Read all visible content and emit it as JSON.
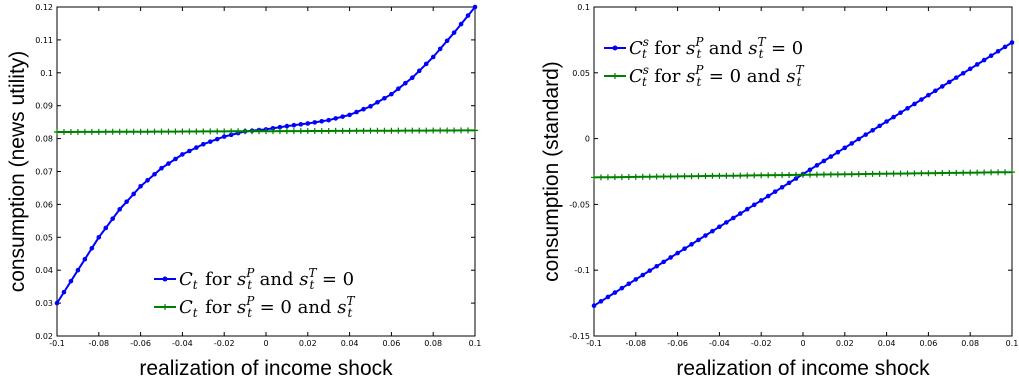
{
  "chart_data": [
    {
      "type": "line",
      "xlabel": "realization of income shock",
      "ylabel": "consumption (news utility)",
      "xlim": [
        -0.1,
        0.1
      ],
      "ylim": [
        0.02,
        0.12
      ],
      "xticks": [
        "-0.1",
        "-0.08",
        "-0.06",
        "-0.04",
        "-0.02",
        "0",
        "0.02",
        "0.04",
        "0.06",
        "0.08",
        "0.1"
      ],
      "yticks": [
        "0.02",
        "0.03",
        "0.04",
        "0.05",
        "0.06",
        "0.07",
        "0.08",
        "0.09",
        "0.1",
        "0.11",
        "0.12"
      ],
      "grid": false,
      "legend_position": "bottom-right",
      "series": [
        {
          "name": "C_t for s_t^P and s_t^T = 0",
          "color": "#0000ff",
          "marker": "dot",
          "x": [
            -0.1,
            -0.09,
            -0.08,
            -0.07,
            -0.06,
            -0.05,
            -0.04,
            -0.03,
            -0.02,
            -0.01,
            0,
            0.01,
            0.02,
            0.03,
            0.04,
            0.05,
            0.06,
            0.07,
            0.08,
            0.09,
            0.1
          ],
          "y": [
            0.03,
            0.04,
            0.05,
            0.0585,
            0.0655,
            0.071,
            0.0752,
            0.0783,
            0.0806,
            0.0822,
            0.0828,
            0.0838,
            0.0846,
            0.0856,
            0.0872,
            0.0898,
            0.0935,
            0.0985,
            0.1048,
            0.1122,
            0.12
          ]
        },
        {
          "name": "C_t for s_t^P = 0 and s_t^T",
          "color": "#008000",
          "marker": "plus",
          "x": [
            -0.1,
            0.1
          ],
          "y": [
            0.082,
            0.0825
          ]
        }
      ],
      "legend_entries": [
        {
          "prefix": "C",
          "sub": "t",
          "sup": "",
          "text": " for ",
          "var1": "s",
          "var1_sub": "t",
          "var1_sup": "P",
          "mid": " and ",
          "var2": "s",
          "var2_sub": "t",
          "var2_sup": "T",
          "tail": " = 0"
        },
        {
          "prefix": "C",
          "sub": "t",
          "sup": "",
          "text": " for ",
          "var1": "s",
          "var1_sub": "t",
          "var1_sup": "P",
          "mid": " = 0 and ",
          "var2": "s",
          "var2_sub": "t",
          "var2_sup": "T",
          "tail": ""
        }
      ]
    },
    {
      "type": "line",
      "xlabel": "realization of income shock",
      "ylabel": "consumption (standard)",
      "xlim": [
        -0.1,
        0.1
      ],
      "ylim": [
        -0.15,
        0.1
      ],
      "xticks": [
        "-0.1",
        "-0.08",
        "-0.06",
        "-0.04",
        "-0.02",
        "0",
        "0.02",
        "0.04",
        "0.06",
        "0.08",
        "0.1"
      ],
      "yticks": [
        "-0.15",
        "-0.1",
        "-0.05",
        "0",
        "0.05",
        "0.1"
      ],
      "grid": false,
      "legend_position": "top-left",
      "series": [
        {
          "name": "C_t^s for s_t^P and s_t^T = 0",
          "color": "#0000ff",
          "marker": "dot",
          "x": [
            -0.1,
            0.1
          ],
          "y": [
            -0.127,
            0.073
          ]
        },
        {
          "name": "C_t^s for s_t^P = 0 and s_t^T",
          "color": "#008000",
          "marker": "plus",
          "x": [
            -0.1,
            0.1
          ],
          "y": [
            -0.0295,
            -0.0255
          ]
        }
      ],
      "legend_entries": [
        {
          "prefix": "C",
          "sub": "t",
          "sup": "s",
          "text": " for ",
          "var1": "s",
          "var1_sub": "t",
          "var1_sup": "P",
          "mid": " and ",
          "var2": "s",
          "var2_sub": "t",
          "var2_sup": "T",
          "tail": " = 0"
        },
        {
          "prefix": "C",
          "sub": "t",
          "sup": "s",
          "text": " for ",
          "var1": "s",
          "var1_sub": "t",
          "var1_sup": "P",
          "mid": " = 0 and ",
          "var2": "s",
          "var2_sub": "t",
          "var2_sup": "T",
          "tail": ""
        }
      ]
    }
  ]
}
